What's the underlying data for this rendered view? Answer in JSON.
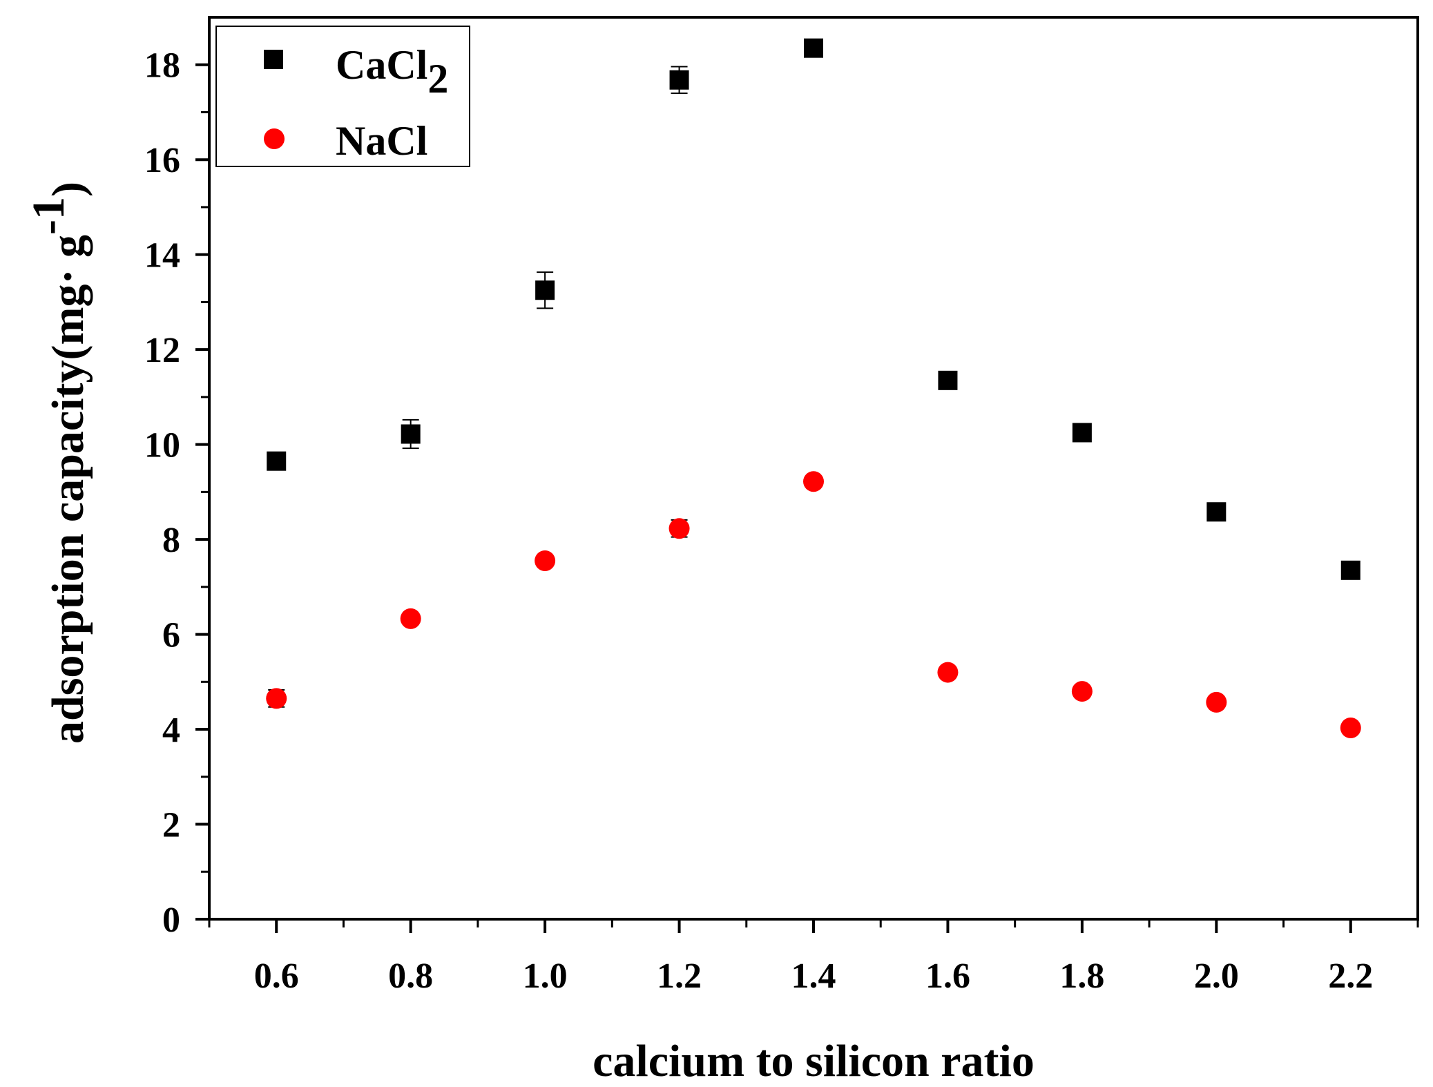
{
  "chart_data": {
    "type": "scatter",
    "title": "",
    "xlabel": "calcium to silicon ratio",
    "ylabel": {
      "main": "adsorption capacity(mg· g",
      "superscript": "-1",
      "close": ")"
    },
    "xlim": [
      0.5,
      2.3
    ],
    "ylim": [
      0,
      19
    ],
    "x_ticks": [
      "0.6",
      "0.8",
      "1.0",
      "1.2",
      "1.4",
      "1.6",
      "1.8",
      "2.0",
      "2.2"
    ],
    "y_ticks": [
      "0",
      "2",
      "4",
      "6",
      "8",
      "10",
      "12",
      "14",
      "16",
      "18"
    ],
    "grid": false,
    "legend_position": "top-left",
    "series": [
      {
        "name": "CaCl2",
        "legend_label": {
          "base": "CaCl",
          "subscript": "2"
        },
        "marker": "square",
        "color": "#000000",
        "x": [
          0.6,
          0.8,
          1.0,
          1.2,
          1.4,
          1.6,
          1.8,
          2.0,
          2.2
        ],
        "y": [
          9.65,
          10.22,
          13.25,
          17.68,
          18.35,
          11.35,
          10.25,
          8.58,
          7.35
        ],
        "error": [
          0.1,
          0.3,
          0.38,
          0.28,
          0.12,
          0.1,
          0.12,
          0.1,
          0.1
        ]
      },
      {
        "name": "NaCl",
        "legend_label": {
          "base": "NaCl",
          "subscript": ""
        },
        "marker": "circle",
        "color": "#ff0000",
        "x": [
          0.6,
          0.8,
          1.0,
          1.2,
          1.4,
          1.6,
          1.8,
          2.0,
          2.2
        ],
        "y": [
          4.65,
          6.33,
          7.55,
          8.23,
          9.22,
          5.2,
          4.8,
          4.57,
          4.03
        ],
        "error": [
          0.18,
          0.1,
          0.1,
          0.18,
          0.1,
          0.1,
          0.1,
          0.1,
          0.1
        ]
      }
    ]
  }
}
